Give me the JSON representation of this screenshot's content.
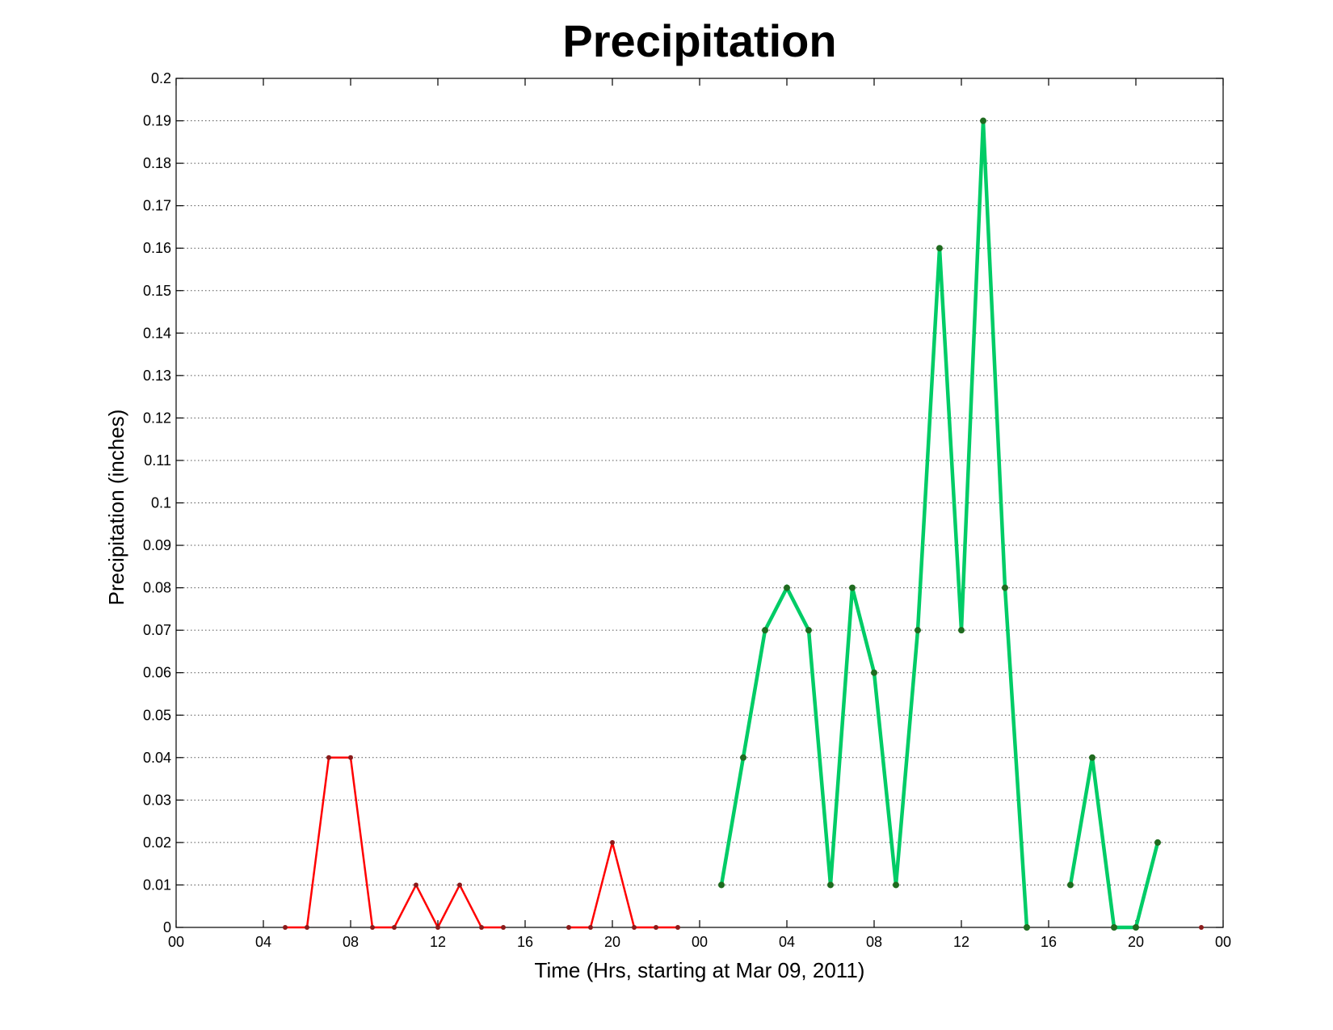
{
  "chart_data": {
    "type": "line",
    "title": "Precipitation",
    "xlabel": "Time (Hrs, starting at Mar 09, 2011)",
    "ylabel": "Precipitation (inches)",
    "xlim": [
      "2011-03-09 00:00",
      "2011-03-11 00:00"
    ],
    "ylim": [
      0,
      0.2
    ],
    "x_tick_values": [
      "2011-03-09 00:00",
      "2011-03-09 04:00",
      "2011-03-09 08:00",
      "2011-03-09 12:00",
      "2011-03-09 16:00",
      "2011-03-09 20:00",
      "2011-03-10 00:00",
      "2011-03-10 04:00",
      "2011-03-10 08:00",
      "2011-03-10 12:00",
      "2011-03-10 16:00",
      "2011-03-10 20:00",
      "2011-03-11 00:00"
    ],
    "x_tick_labels": [
      "00",
      "04",
      "08",
      "12",
      "16",
      "20",
      "00",
      "04",
      "08",
      "12",
      "16",
      "20",
      "00"
    ],
    "y_ticks": [
      0,
      0.01,
      0.02,
      0.03,
      0.04,
      0.05,
      0.06,
      0.07,
      0.08,
      0.09,
      0.1,
      0.11,
      0.12,
      0.13,
      0.14,
      0.15,
      0.16,
      0.17,
      0.18,
      0.19,
      0.2
    ],
    "y_tick_labels": [
      "0",
      "0.01",
      "0.02",
      "0.03",
      "0.04",
      "0.05",
      "0.06",
      "0.07",
      "0.08",
      "0.09",
      "0.1",
      "0.11",
      "0.12",
      "0.13",
      "0.14",
      "0.15",
      "0.16",
      "0.17",
      "0.18",
      "0.19",
      "0.2"
    ],
    "grid": "y-dotted",
    "series": [
      {
        "color": "#ff0000",
        "marker_color": "#8b1a1a",
        "line_weight": "thin",
        "segments": [
          [
            {
              "x": "2011-03-09 05:00",
              "y": 0
            },
            {
              "x": "2011-03-09 06:00",
              "y": 0
            },
            {
              "x": "2011-03-09 07:00",
              "y": 0.04
            },
            {
              "x": "2011-03-09 08:00",
              "y": 0.04
            },
            {
              "x": "2011-03-09 09:00",
              "y": 0
            },
            {
              "x": "2011-03-09 10:00",
              "y": 0
            },
            {
              "x": "2011-03-09 11:00",
              "y": 0.01
            },
            {
              "x": "2011-03-09 12:00",
              "y": 0
            },
            {
              "x": "2011-03-09 13:00",
              "y": 0.01
            },
            {
              "x": "2011-03-09 14:00",
              "y": 0
            },
            {
              "x": "2011-03-09 15:00",
              "y": 0
            }
          ],
          [
            {
              "x": "2011-03-09 18:00",
              "y": 0
            },
            {
              "x": "2011-03-09 19:00",
              "y": 0
            },
            {
              "x": "2011-03-09 20:00",
              "y": 0.02
            },
            {
              "x": "2011-03-09 21:00",
              "y": 0
            },
            {
              "x": "2011-03-09 22:00",
              "y": 0
            },
            {
              "x": "2011-03-09 23:00",
              "y": 0
            }
          ]
        ]
      },
      {
        "color": "#00cc66",
        "marker_color": "#1f6b1f",
        "line_weight": "thick",
        "segments": [
          [
            {
              "x": "2011-03-10 01:00",
              "y": 0.01
            },
            {
              "x": "2011-03-10 02:00",
              "y": 0.04
            },
            {
              "x": "2011-03-10 03:00",
              "y": 0.07
            },
            {
              "x": "2011-03-10 04:00",
              "y": 0.08
            },
            {
              "x": "2011-03-10 05:00",
              "y": 0.07
            },
            {
              "x": "2011-03-10 06:00",
              "y": 0.01
            },
            {
              "x": "2011-03-10 07:00",
              "y": 0.08
            },
            {
              "x": "2011-03-10 08:00",
              "y": 0.06
            },
            {
              "x": "2011-03-10 09:00",
              "y": 0.01
            },
            {
              "x": "2011-03-10 10:00",
              "y": 0.07
            },
            {
              "x": "2011-03-10 11:00",
              "y": 0.16
            },
            {
              "x": "2011-03-10 12:00",
              "y": 0.07
            },
            {
              "x": "2011-03-10 13:00",
              "y": 0.19
            },
            {
              "x": "2011-03-10 14:00",
              "y": 0.08
            },
            {
              "x": "2011-03-10 15:00",
              "y": 0
            }
          ],
          [
            {
              "x": "2011-03-10 17:00",
              "y": 0.01
            },
            {
              "x": "2011-03-10 18:00",
              "y": 0.04
            },
            {
              "x": "2011-03-10 19:00",
              "y": 0
            },
            {
              "x": "2011-03-10 20:00",
              "y": 0
            },
            {
              "x": "2011-03-10 21:00",
              "y": 0.02
            }
          ]
        ]
      },
      {
        "color": "#ff0000",
        "marker_color": "#8b1a1a",
        "line_weight": "thin",
        "segments": [
          [
            {
              "x": "2011-03-10 23:00",
              "y": 0
            }
          ]
        ]
      }
    ]
  }
}
